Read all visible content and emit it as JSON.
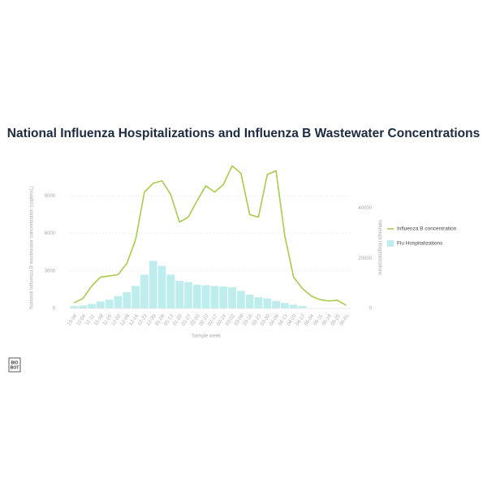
{
  "chart_data": {
    "type": "bar-line",
    "title": "National Influenza Hospitalizations and Influenza B Wastewater Concentrations",
    "x_label": "Sample week",
    "y_label": "National Influenza B wastewater concentration (copies/L)",
    "y2_label": "Influenza Hospitalizations",
    "categories": [
      "10-28",
      "11-04",
      "11-11",
      "11-18",
      "11-25",
      "12-02",
      "12-09",
      "12-16",
      "12-23",
      "12-30",
      "01-06",
      "01-13",
      "01-20",
      "01-27",
      "02-03",
      "02-10",
      "02-17",
      "02-24",
      "03-02",
      "03-09",
      "03-16",
      "03-23",
      "03-30",
      "04-06",
      "04-13",
      "04-20",
      "04-27",
      "05-04",
      "05-11",
      "05-18",
      "05-25",
      "06-01"
    ],
    "series": [
      {
        "name": "Influenza B concentration",
        "kind": "line",
        "color": "#a8cc4c",
        "axis": "y",
        "values": [
          450,
          800,
          1800,
          2500,
          2600,
          2700,
          3600,
          5500,
          9300,
          10000,
          10200,
          9100,
          6900,
          7300,
          8600,
          9800,
          9300,
          9900,
          11400,
          10800,
          7500,
          7300,
          10700,
          11000,
          5800,
          2500,
          1600,
          1000,
          700,
          600,
          650,
          250
        ]
      },
      {
        "name": "Flu Hospitalizations",
        "kind": "bar",
        "color": "#bdeeed",
        "axis": "y2",
        "values": [
          1000,
          1200,
          1800,
          2800,
          3500,
          5000,
          6500,
          9000,
          13500,
          19000,
          17000,
          13500,
          11000,
          10500,
          9500,
          9300,
          9000,
          8800,
          8500,
          7000,
          5500,
          4500,
          4000,
          3000,
          2200,
          1500,
          1000,
          null,
          null,
          null,
          null,
          null
        ]
      }
    ],
    "ylim": [
      0,
      12000
    ],
    "yticks": [
      0,
      3000,
      6000,
      9000
    ],
    "y2lim": [
      0,
      60000
    ],
    "y2ticks": [
      0,
      20000,
      40000
    ],
    "grid": true,
    "legend": "right"
  },
  "logo": [
    "BIO",
    "BOT"
  ]
}
